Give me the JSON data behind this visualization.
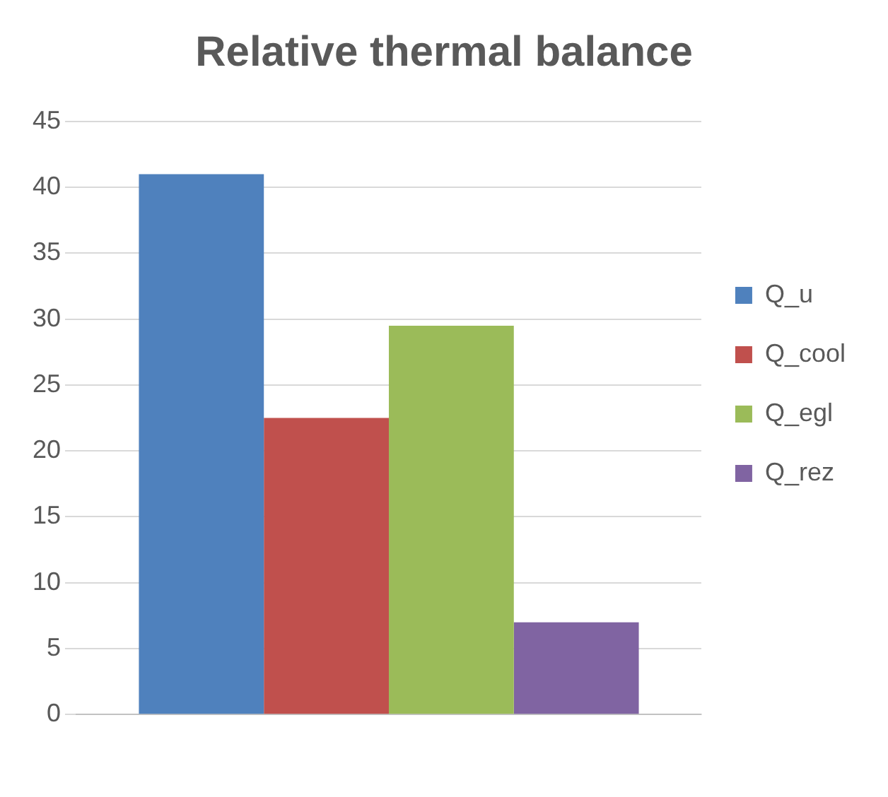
{
  "chart_data": {
    "type": "bar",
    "title": "Relative thermal balance",
    "categories": [
      null
    ],
    "series": [
      {
        "name": "Q_u",
        "color": "#4f81bd",
        "values": [
          41
        ]
      },
      {
        "name": "Q_cool",
        "color": "#c0504d",
        "values": [
          22.5
        ]
      },
      {
        "name": "Q_egl",
        "color": "#9bbb59",
        "values": [
          29.5
        ]
      },
      {
        "name": "Q_rez",
        "color": "#8064a2",
        "values": [
          7
        ]
      }
    ],
    "ylim": [
      0,
      45
    ],
    "yticks": [
      0,
      5,
      10,
      15,
      20,
      25,
      30,
      35,
      40,
      45
    ],
    "grid": "y",
    "legend": "right"
  }
}
